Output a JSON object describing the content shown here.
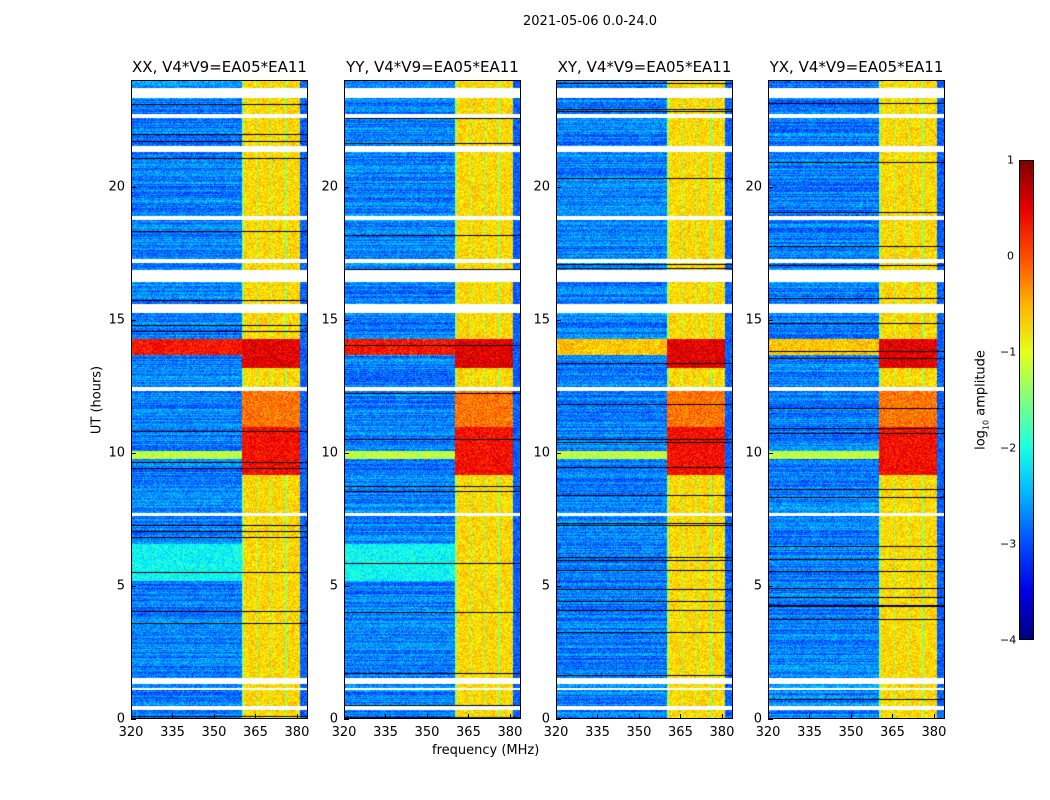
{
  "suptitle": "2021-05-06 0.0-24.0",
  "xlabel": "frequency (MHz)",
  "ylabel": "UT (hours)",
  "chart_data": [
    {
      "type": "heatmap",
      "title": "XX, V4*V9=EA05*EA11",
      "xlim": [
        320,
        384
      ],
      "ylim": [
        0,
        24
      ],
      "xticks": [
        "320",
        "335",
        "350",
        "365",
        "380"
      ],
      "yticks": [
        "0",
        "5",
        "10",
        "15",
        "20"
      ],
      "seed": 11,
      "cyan_block": true
    },
    {
      "type": "heatmap",
      "title": "YY, V4*V9=EA05*EA11",
      "xlim": [
        320,
        384
      ],
      "ylim": [
        0,
        24
      ],
      "xticks": [
        "320",
        "335",
        "350",
        "365",
        "380"
      ],
      "yticks": [
        "0",
        "5",
        "10",
        "15",
        "20"
      ],
      "seed": 23,
      "cyan_block": true
    },
    {
      "type": "heatmap",
      "title": "XY, V4*V9=EA05*EA11",
      "xlim": [
        320,
        384
      ],
      "ylim": [
        0,
        24
      ],
      "xticks": [
        "320",
        "335",
        "350",
        "365",
        "380"
      ],
      "yticks": [
        "0",
        "5",
        "10",
        "15",
        "20"
      ],
      "seed": 37,
      "cyan_block": false
    },
    {
      "type": "heatmap",
      "title": "YX, V4*V9=EA05*EA11",
      "xlim": [
        320,
        384
      ],
      "ylim": [
        0,
        24
      ],
      "xticks": [
        "320",
        "335",
        "350",
        "365",
        "380"
      ],
      "yticks": [
        "0",
        "5",
        "10",
        "15",
        "20"
      ],
      "seed": 51,
      "cyan_block": false
    }
  ],
  "colorbar": {
    "label": "log10 amplitude",
    "label_main": "log",
    "label_sub": "10",
    "label_rest": " amplitude",
    "range": [
      -4,
      1
    ],
    "ticks": [
      "1",
      "0",
      "−1",
      "−2",
      "−3",
      "−4"
    ],
    "colormap": "jet"
  },
  "flagged_hours": [
    [
      0.35,
      0.5
    ],
    [
      1.1,
      1.2
    ],
    [
      1.35,
      1.55
    ],
    [
      7.65,
      7.75
    ],
    [
      12.35,
      12.5
    ],
    [
      15.25,
      15.6
    ],
    [
      16.45,
      16.9
    ],
    [
      17.15,
      17.3
    ],
    [
      18.75,
      18.9
    ],
    [
      21.3,
      21.55
    ],
    [
      22.6,
      22.75
    ],
    [
      23.35,
      23.7
    ]
  ],
  "band_mhz": [
    360,
    381
  ]
}
